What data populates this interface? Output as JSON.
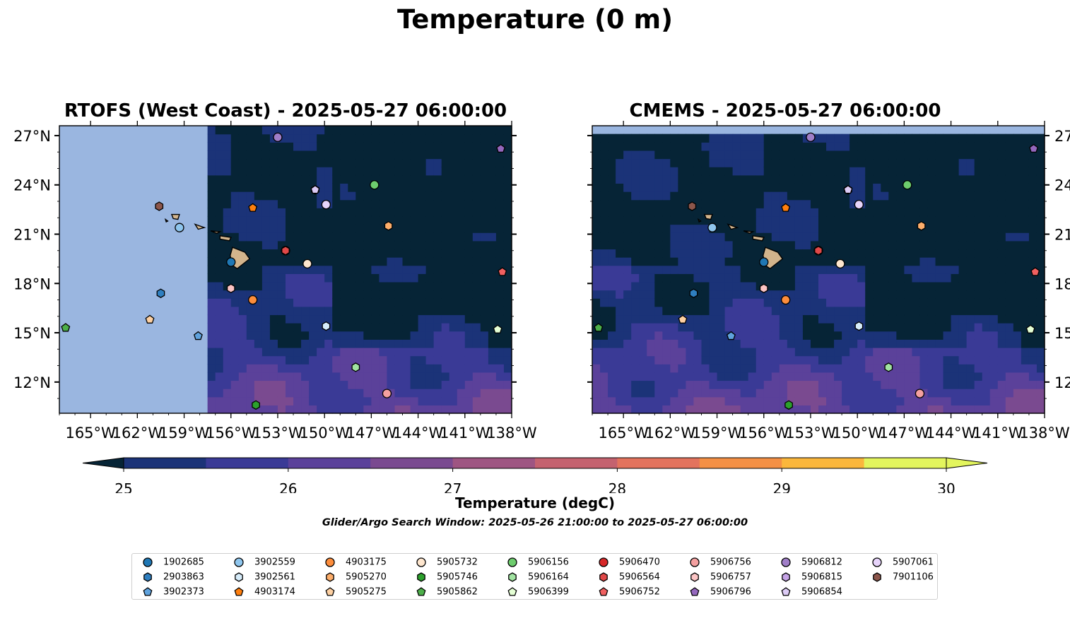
{
  "chart_data": {
    "type": "map",
    "suptitle": "Temperature (0 m)",
    "panels": [
      {
        "title": "RTOFS (West Coast) - 2025-05-27 06:00:00",
        "model_data_lon_min": -157.6,
        "yaxis_side": "left"
      },
      {
        "title": "CMEMS - 2025-05-27 06:00:00",
        "model_data_lat_max": 27.0,
        "yaxis_side": "right"
      }
    ],
    "lon_range": [
      -167.0,
      -138.0
    ],
    "lat_range": [
      10.1,
      27.6
    ],
    "lon_ticks": [
      -165,
      -162,
      -159,
      -156,
      -153,
      -150,
      -147,
      -144,
      -141,
      -138
    ],
    "lon_tick_labels": [
      "165°W",
      "162°W",
      "159°W",
      "156°W",
      "153°W",
      "150°W",
      "147°W",
      "144°W",
      "141°W",
      "138°W"
    ],
    "lat_ticks": [
      12,
      15,
      18,
      21,
      24,
      27
    ],
    "lat_tick_labels": [
      "12°N",
      "15°N",
      "18°N",
      "21°N",
      "24°N",
      "27°N"
    ],
    "colorbar": {
      "label": "Temperature (degC)",
      "min": 25,
      "max": 30,
      "step": 0.5,
      "ticks": [
        25,
        26,
        27,
        28,
        29,
        30
      ],
      "tick_labels": [
        "25",
        "26",
        "27",
        "28",
        "29",
        "30"
      ],
      "colors": [
        "#062436",
        "#1b3378",
        "#3a3a96",
        "#5b419a",
        "#7a4a90",
        "#9e5582",
        "#c4626f",
        "#e3735d",
        "#f49045",
        "#fbb73c",
        "#e3f55d"
      ],
      "extend": "both"
    },
    "search_window": "Glider/Argo Search Window: 2025-05-26 21:00:00 to 2025-05-27 06:00:00",
    "floats": [
      {
        "id": "1902685",
        "marker": "circle",
        "color": "#1f77b4",
        "lon": -156.0,
        "lat": 19.3
      },
      {
        "id": "2903863",
        "marker": "hexagon",
        "color": "#2f7fc0",
        "lon": -160.5,
        "lat": 17.4
      },
      {
        "id": "3902373",
        "marker": "pentagon",
        "color": "#5fa2dd",
        "lon": -158.1,
        "lat": 14.8
      },
      {
        "id": "3902559",
        "marker": "circle",
        "color": "#8fc6ee",
        "lon": -159.3,
        "lat": 21.4
      },
      {
        "id": "3902561",
        "marker": "hexagon",
        "color": "#d6ecfa",
        "lon": -149.9,
        "lat": 15.4
      },
      {
        "id": "4903174",
        "marker": "pentagon",
        "color": "#ff7f0e",
        "lon": -154.6,
        "lat": 22.6
      },
      {
        "id": "4903175",
        "marker": "circle",
        "color": "#fd8d3c",
        "lon": -154.6,
        "lat": 17.0
      },
      {
        "id": "5905270",
        "marker": "hexagon",
        "color": "#fdae6b",
        "lon": -145.9,
        "lat": 21.5
      },
      {
        "id": "5905275",
        "marker": "pentagon",
        "color": "#fdd0a2",
        "lon": -161.2,
        "lat": 15.8
      },
      {
        "id": "5905732",
        "marker": "circle",
        "color": "#fee6ce",
        "lon": -151.1,
        "lat": 19.2
      },
      {
        "id": "5905746",
        "marker": "hexagon",
        "color": "#2ca02c",
        "lon": -154.4,
        "lat": 10.6
      },
      {
        "id": "5905862",
        "marker": "pentagon",
        "color": "#4daf4a",
        "lon": -166.6,
        "lat": 15.3
      },
      {
        "id": "5906156",
        "marker": "circle",
        "color": "#6dcc6d",
        "lon": -146.8,
        "lat": 24.0
      },
      {
        "id": "5906164",
        "marker": "hexagon",
        "color": "#a1e3a1",
        "lon": -148.0,
        "lat": 12.9
      },
      {
        "id": "5906399",
        "marker": "pentagon",
        "color": "#e5ffd5",
        "lon": -138.9,
        "lat": 15.2
      },
      {
        "id": "5906470",
        "marker": "circle",
        "color": "#d62728",
        "lon": -152.5,
        "lat": 20.0
      },
      {
        "id": "5906564",
        "marker": "hexagon",
        "color": "#e04848",
        "lon": -152.5,
        "lat": 20.0
      },
      {
        "id": "5906752",
        "marker": "pentagon",
        "color": "#f06060",
        "lon": -138.6,
        "lat": 18.7
      },
      {
        "id": "5906756",
        "marker": "circle",
        "color": "#f4a0a0",
        "lon": -146.0,
        "lat": 11.3
      },
      {
        "id": "5906757",
        "marker": "hexagon",
        "color": "#fbc4c4",
        "lon": -156.0,
        "lat": 17.7
      },
      {
        "id": "5906796",
        "marker": "pentagon",
        "color": "#9467bd",
        "lon": -138.7,
        "lat": 26.2
      },
      {
        "id": "5906812",
        "marker": "circle",
        "color": "#a07ec8",
        "lon": -153.0,
        "lat": 26.9
      },
      {
        "id": "5906815",
        "marker": "hexagon",
        "color": "#c5a3e6",
        "lon": -150.6,
        "lat": 23.7
      },
      {
        "id": "5906854",
        "marker": "pentagon",
        "color": "#dccbf5",
        "lon": -150.6,
        "lat": 23.7
      },
      {
        "id": "5907061",
        "marker": "circle",
        "color": "#e7d4fb",
        "lon": -149.9,
        "lat": 22.8
      },
      {
        "id": "7901106",
        "marker": "hexagon",
        "color": "#8c564b",
        "lon": -160.6,
        "lat": 22.7
      }
    ]
  }
}
